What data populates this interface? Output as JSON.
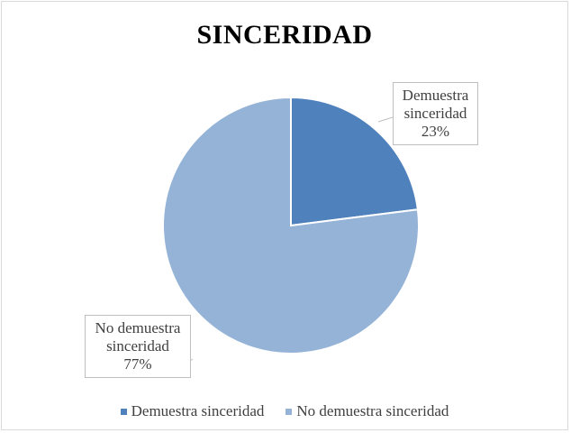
{
  "chart_data": {
    "type": "pie",
    "title": "SINCERIDAD",
    "slices": [
      {
        "name": "Demuestra sinceridad",
        "label_line1": "Demuestra",
        "label_line2": "sinceridad",
        "percent_label": "23%",
        "value": 23,
        "color": "#4f81bd"
      },
      {
        "name": "No demuestra sinceridad",
        "label_line1": "No demuestra",
        "label_line2": "sinceridad",
        "percent_label": "77%",
        "value": 77,
        "color": "#95b3d7"
      }
    ],
    "legend_position": "bottom"
  }
}
